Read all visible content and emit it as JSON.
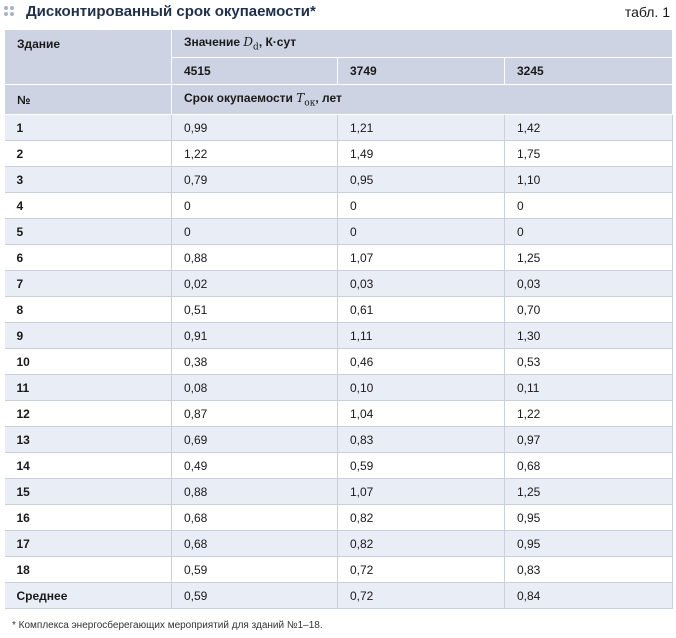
{
  "title_bar": {
    "title": "Дисконтированный срок окупаемости*",
    "table_label": "табл. 1"
  },
  "header": {
    "col1_label": "Здание",
    "value_label_prefix": "Значение ",
    "value_symbol": "D",
    "value_symbol_sub": "d",
    "value_label_suffix": ", К·сут",
    "dd_values": [
      "4515",
      "3749",
      "3245"
    ],
    "num_label": "№",
    "payback_label_prefix": "Срок окупаемости ",
    "payback_symbol": "T",
    "payback_symbol_sub": "ок",
    "payback_label_suffix": ", лет"
  },
  "rows": [
    {
      "building": "1",
      "values": [
        "0,99",
        "1,21",
        "1,42"
      ]
    },
    {
      "building": "2",
      "values": [
        "1,22",
        "1,49",
        "1,75"
      ]
    },
    {
      "building": "3",
      "values": [
        "0,79",
        "0,95",
        "1,10"
      ]
    },
    {
      "building": "4",
      "values": [
        "0",
        "0",
        "0"
      ]
    },
    {
      "building": "5",
      "values": [
        "0",
        "0",
        "0"
      ]
    },
    {
      "building": "6",
      "values": [
        "0,88",
        "1,07",
        "1,25"
      ]
    },
    {
      "building": "7",
      "values": [
        "0,02",
        "0,03",
        "0,03"
      ]
    },
    {
      "building": "8",
      "values": [
        "0,51",
        "0,61",
        "0,70"
      ]
    },
    {
      "building": "9",
      "values": [
        "0,91",
        "1,11",
        "1,30"
      ]
    },
    {
      "building": "10",
      "values": [
        "0,38",
        "0,46",
        "0,53"
      ]
    },
    {
      "building": "11",
      "values": [
        "0,08",
        "0,10",
        "0,11"
      ]
    },
    {
      "building": "12",
      "values": [
        "0,87",
        "1,04",
        "1,22"
      ]
    },
    {
      "building": "13",
      "values": [
        "0,69",
        "0,83",
        "0,97"
      ]
    },
    {
      "building": "14",
      "values": [
        "0,49",
        "0,59",
        "0,68"
      ]
    },
    {
      "building": "15",
      "values": [
        "0,88",
        "1,07",
        "1,25"
      ]
    },
    {
      "building": "16",
      "values": [
        "0,68",
        "0,82",
        "0,95"
      ]
    },
    {
      "building": "17",
      "values": [
        "0,68",
        "0,82",
        "0,95"
      ]
    },
    {
      "building": "18",
      "values": [
        "0,59",
        "0,72",
        "0,83"
      ]
    },
    {
      "building": "Среднее",
      "values": [
        "0,59",
        "0,72",
        "0,84"
      ]
    }
  ],
  "footnote": "* Комплекса энергосберегающих мероприятий для зданий №1–18.",
  "colors": {
    "header_bg": "#cdd3e2",
    "stripe_bg": "#e9edf5",
    "title_color": "#1f2f4c"
  }
}
